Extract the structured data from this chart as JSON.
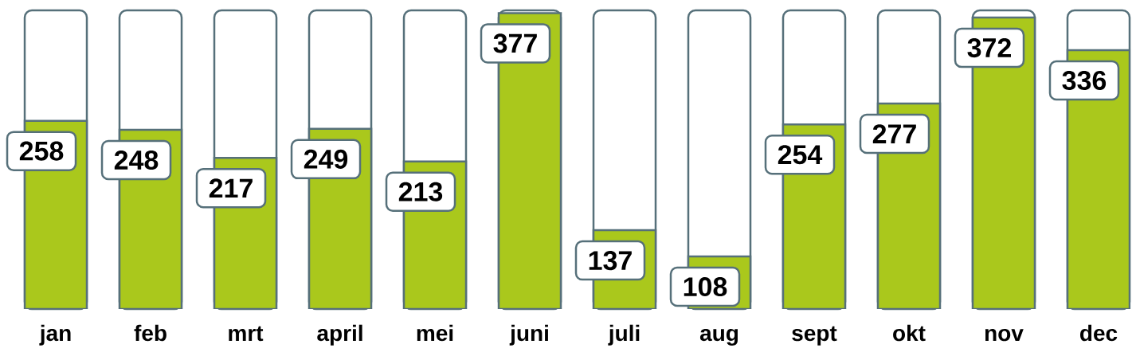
{
  "chart_data": {
    "type": "bar",
    "categories": [
      "jan",
      "feb",
      "mrt",
      "april",
      "mei",
      "juni",
      "juli",
      "aug",
      "sept",
      "okt",
      "nov",
      "dec"
    ],
    "values": [
      258,
      248,
      217,
      249,
      213,
      377,
      137,
      108,
      254,
      277,
      372,
      336
    ],
    "color": "#aac81c",
    "ylim": [
      50,
      380
    ],
    "data_labels": true,
    "tick_labels": "x"
  }
}
